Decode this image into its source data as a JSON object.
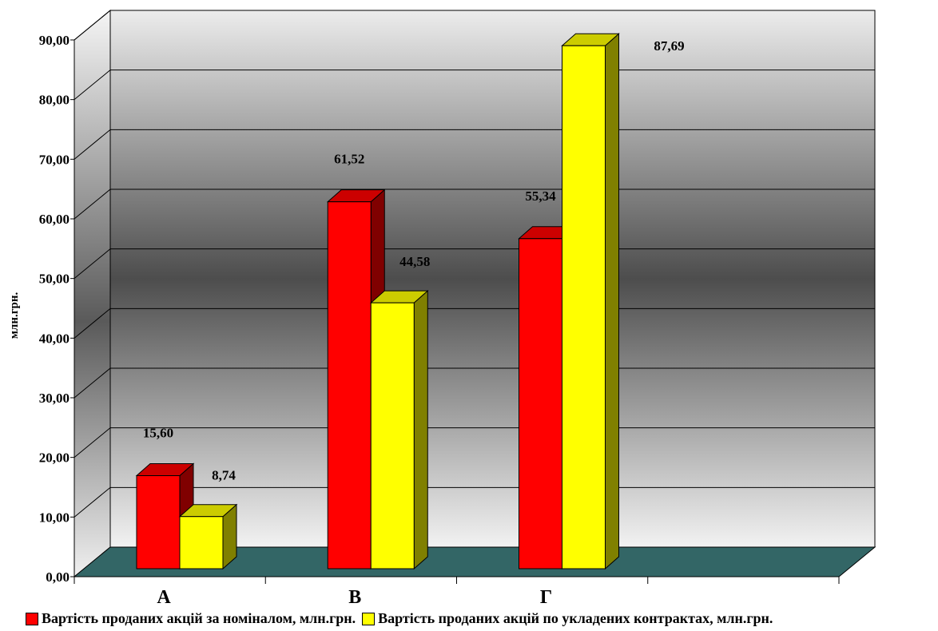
{
  "chart_data": {
    "type": "bar",
    "categories": [
      "А",
      "В",
      "Г"
    ],
    "series": [
      {
        "name": "Вартість проданих акцій за номіналом, млн.грн.",
        "values": [
          15.6,
          61.52,
          55.34
        ],
        "labels": [
          "15,60",
          "61,52",
          "55,34"
        ],
        "color": "#ff0000",
        "side_color": "#800000"
      },
      {
        "name": "Вартість проданих акцій по укладених контрактах, млн.грн.",
        "values": [
          8.74,
          44.58,
          87.69
        ],
        "labels": [
          "8,74",
          "44,58",
          "87,69"
        ],
        "color": "#ffff00",
        "side_color": "#808000"
      }
    ],
    "ylabel": "млн.грн.",
    "xlabel": "",
    "title": "",
    "ylim": [
      0,
      90
    ],
    "yticks": [
      "0,00",
      "10,00",
      "20,00",
      "30,00",
      "40,00",
      "50,00",
      "60,00",
      "70,00",
      "80,00",
      "90,00"
    ],
    "grid": true,
    "legend_position": "bottom",
    "floor_color": "#336666"
  }
}
